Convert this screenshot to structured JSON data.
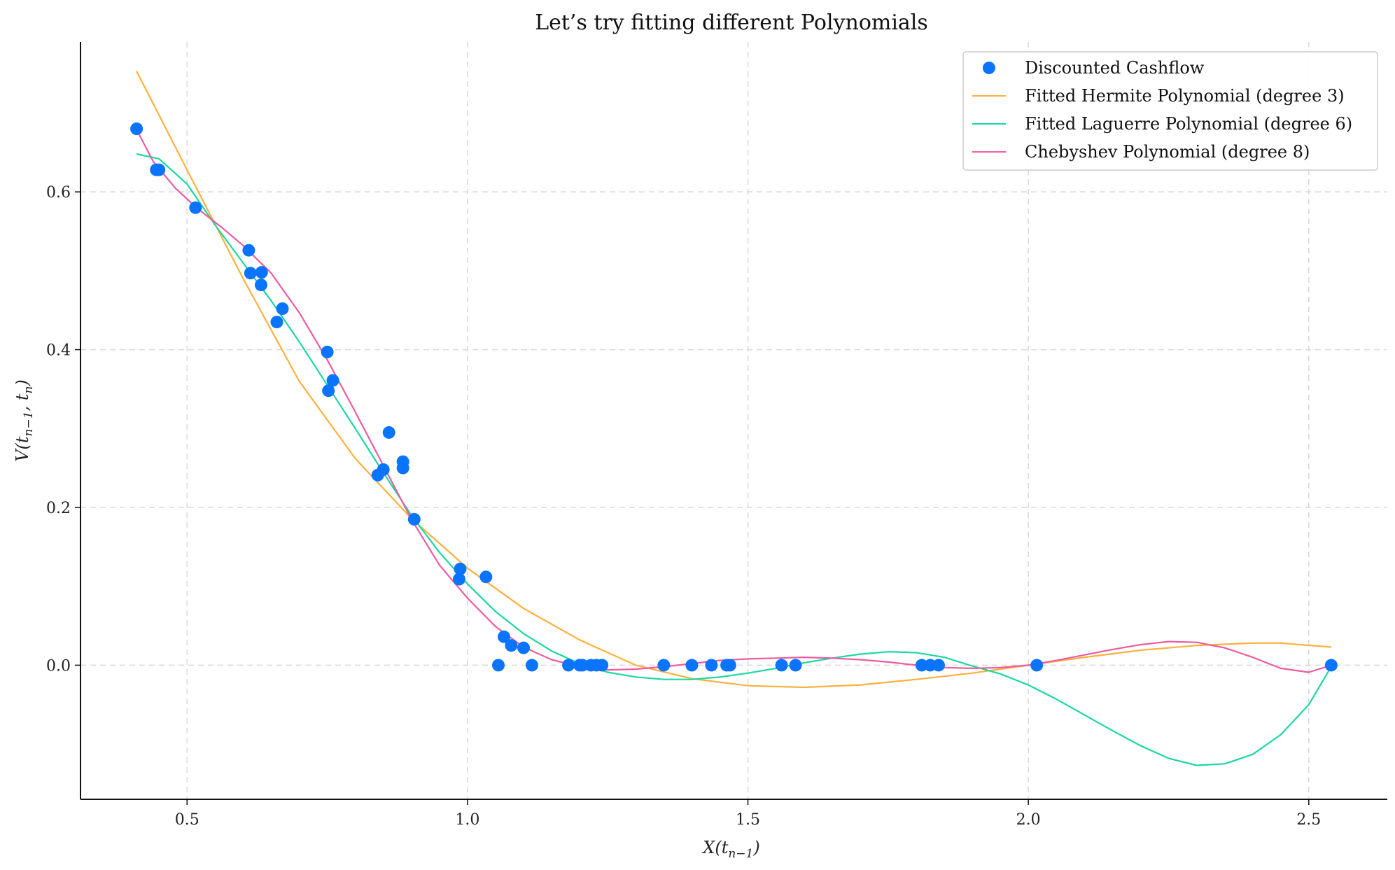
{
  "chart_data": {
    "type": "line",
    "title": "Let’s try fitting different Polynomials",
    "xlabel": "X(t",
    "xlabel_sub": "n−1",
    "xlabel_close": ")",
    "ylabel": "V(t",
    "ylabel_sub1": "n−1",
    "ylabel_mid": ", t",
    "ylabel_sub2": "n",
    "ylabel_close": ")",
    "xlim": [
      0.31,
      2.64
    ],
    "ylim": [
      -0.17,
      0.79
    ],
    "x_ticks": [
      0.5,
      1.0,
      1.5,
      2.0,
      2.5
    ],
    "x_tick_labels": [
      "0.5",
      "1.0",
      "1.5",
      "2.0",
      "2.5"
    ],
    "y_ticks": [
      0.0,
      0.2,
      0.4,
      0.6
    ],
    "y_tick_labels": [
      "0.0",
      "0.2",
      "0.4",
      "0.6"
    ],
    "grid": true,
    "legend_position": "top-right",
    "series": [
      {
        "name": "Discounted Cashflow",
        "kind": "scatter",
        "color": "#0a74ff",
        "points": [
          [
            0.41,
            0.68
          ],
          [
            0.445,
            0.628
          ],
          [
            0.45,
            0.628
          ],
          [
            0.515,
            0.58
          ],
          [
            0.61,
            0.526
          ],
          [
            0.613,
            0.497
          ],
          [
            0.633,
            0.498
          ],
          [
            0.632,
            0.482
          ],
          [
            0.66,
            0.435
          ],
          [
            0.67,
            0.452
          ],
          [
            0.75,
            0.397
          ],
          [
            0.752,
            0.348
          ],
          [
            0.76,
            0.361
          ],
          [
            0.84,
            0.241
          ],
          [
            0.85,
            0.248
          ],
          [
            0.86,
            0.295
          ],
          [
            0.885,
            0.258
          ],
          [
            0.885,
            0.25
          ],
          [
            0.905,
            0.185
          ],
          [
            0.985,
            0.109
          ],
          [
            0.987,
            0.122
          ],
          [
            1.033,
            0.112
          ],
          [
            1.055,
            0.0
          ],
          [
            1.065,
            0.036
          ],
          [
            1.078,
            0.025
          ],
          [
            1.1,
            0.022
          ],
          [
            1.115,
            0.0
          ],
          [
            1.18,
            0.0
          ],
          [
            1.2,
            0.0
          ],
          [
            1.205,
            0.0
          ],
          [
            1.22,
            0.0
          ],
          [
            1.23,
            0.0
          ],
          [
            1.24,
            0.0
          ],
          [
            1.35,
            0.0
          ],
          [
            1.4,
            0.0
          ],
          [
            1.435,
            0.0
          ],
          [
            1.462,
            0.0
          ],
          [
            1.468,
            0.0
          ],
          [
            1.56,
            0.0
          ],
          [
            1.585,
            0.0
          ],
          [
            1.81,
            0.0
          ],
          [
            1.825,
            0.0
          ],
          [
            1.84,
            0.0
          ],
          [
            2.015,
            0.0
          ],
          [
            2.54,
            0.0
          ]
        ]
      },
      {
        "name": "Fitted Hermite Polynomial (degree 3)",
        "kind": "line",
        "color": "#ffb03b",
        "points": [
          [
            0.41,
            0.753
          ],
          [
            0.5,
            0.628
          ],
          [
            0.6,
            0.49
          ],
          [
            0.7,
            0.36
          ],
          [
            0.8,
            0.262
          ],
          [
            0.9,
            0.186
          ],
          [
            1.0,
            0.123
          ],
          [
            1.1,
            0.072
          ],
          [
            1.2,
            0.032
          ],
          [
            1.3,
            0.0
          ],
          [
            1.4,
            -0.017
          ],
          [
            1.5,
            -0.026
          ],
          [
            1.6,
            -0.028
          ],
          [
            1.7,
            -0.025
          ],
          [
            1.8,
            -0.018
          ],
          [
            1.9,
            -0.01
          ],
          [
            2.0,
            0.0
          ],
          [
            2.1,
            0.01
          ],
          [
            2.2,
            0.019
          ],
          [
            2.3,
            0.025
          ],
          [
            2.4,
            0.028
          ],
          [
            2.45,
            0.028
          ],
          [
            2.54,
            0.023
          ]
        ]
      },
      {
        "name": "Fitted Laguerre Polynomial (degree 6)",
        "kind": "line",
        "color": "#1ad9a0",
        "points": [
          [
            0.41,
            0.648
          ],
          [
            0.45,
            0.642
          ],
          [
            0.5,
            0.61
          ],
          [
            0.55,
            0.558
          ],
          [
            0.6,
            0.51
          ],
          [
            0.65,
            0.462
          ],
          [
            0.7,
            0.41
          ],
          [
            0.75,
            0.355
          ],
          [
            0.8,
            0.3
          ],
          [
            0.85,
            0.244
          ],
          [
            0.9,
            0.19
          ],
          [
            0.95,
            0.143
          ],
          [
            1.0,
            0.103
          ],
          [
            1.05,
            0.068
          ],
          [
            1.1,
            0.04
          ],
          [
            1.15,
            0.018
          ],
          [
            1.2,
            0.002
          ],
          [
            1.25,
            -0.009
          ],
          [
            1.3,
            -0.015
          ],
          [
            1.35,
            -0.018
          ],
          [
            1.4,
            -0.018
          ],
          [
            1.45,
            -0.015
          ],
          [
            1.5,
            -0.01
          ],
          [
            1.55,
            -0.004
          ],
          [
            1.6,
            0.003
          ],
          [
            1.65,
            0.009
          ],
          [
            1.7,
            0.014
          ],
          [
            1.75,
            0.017
          ],
          [
            1.8,
            0.016
          ],
          [
            1.85,
            0.01
          ],
          [
            1.9,
            -0.001
          ],
          [
            1.95,
            -0.011
          ],
          [
            2.0,
            -0.025
          ],
          [
            2.05,
            -0.043
          ],
          [
            2.1,
            -0.063
          ],
          [
            2.15,
            -0.083
          ],
          [
            2.2,
            -0.102
          ],
          [
            2.25,
            -0.118
          ],
          [
            2.3,
            -0.127
          ],
          [
            2.35,
            -0.125
          ],
          [
            2.4,
            -0.113
          ],
          [
            2.45,
            -0.088
          ],
          [
            2.5,
            -0.05
          ],
          [
            2.54,
            -0.002
          ]
        ]
      },
      {
        "name": "Chebyshev Polynomial (degree 8)",
        "kind": "line",
        "color": "#ef5aa1",
        "points": [
          [
            0.41,
            0.679
          ],
          [
            0.44,
            0.638
          ],
          [
            0.48,
            0.604
          ],
          [
            0.52,
            0.578
          ],
          [
            0.56,
            0.556
          ],
          [
            0.6,
            0.532
          ],
          [
            0.65,
            0.497
          ],
          [
            0.7,
            0.447
          ],
          [
            0.75,
            0.387
          ],
          [
            0.8,
            0.321
          ],
          [
            0.85,
            0.253
          ],
          [
            0.9,
            0.185
          ],
          [
            0.95,
            0.127
          ],
          [
            1.0,
            0.085
          ],
          [
            1.05,
            0.049
          ],
          [
            1.1,
            0.023
          ],
          [
            1.15,
            0.007
          ],
          [
            1.2,
            -0.002
          ],
          [
            1.25,
            -0.006
          ],
          [
            1.3,
            -0.005
          ],
          [
            1.35,
            -0.002
          ],
          [
            1.4,
            0.002
          ],
          [
            1.45,
            0.006
          ],
          [
            1.5,
            0.008
          ],
          [
            1.55,
            0.009
          ],
          [
            1.6,
            0.01
          ],
          [
            1.65,
            0.009
          ],
          [
            1.7,
            0.007
          ],
          [
            1.75,
            0.004
          ],
          [
            1.8,
            0.0
          ],
          [
            1.85,
            -0.003
          ],
          [
            1.9,
            -0.004
          ],
          [
            1.95,
            -0.003
          ],
          [
            2.0,
            0.0
          ],
          [
            2.05,
            0.006
          ],
          [
            2.1,
            0.013
          ],
          [
            2.15,
            0.02
          ],
          [
            2.2,
            0.026
          ],
          [
            2.25,
            0.03
          ],
          [
            2.3,
            0.029
          ],
          [
            2.35,
            0.022
          ],
          [
            2.4,
            0.01
          ],
          [
            2.45,
            -0.004
          ],
          [
            2.5,
            -0.009
          ],
          [
            2.54,
            0.0
          ]
        ]
      }
    ]
  }
}
